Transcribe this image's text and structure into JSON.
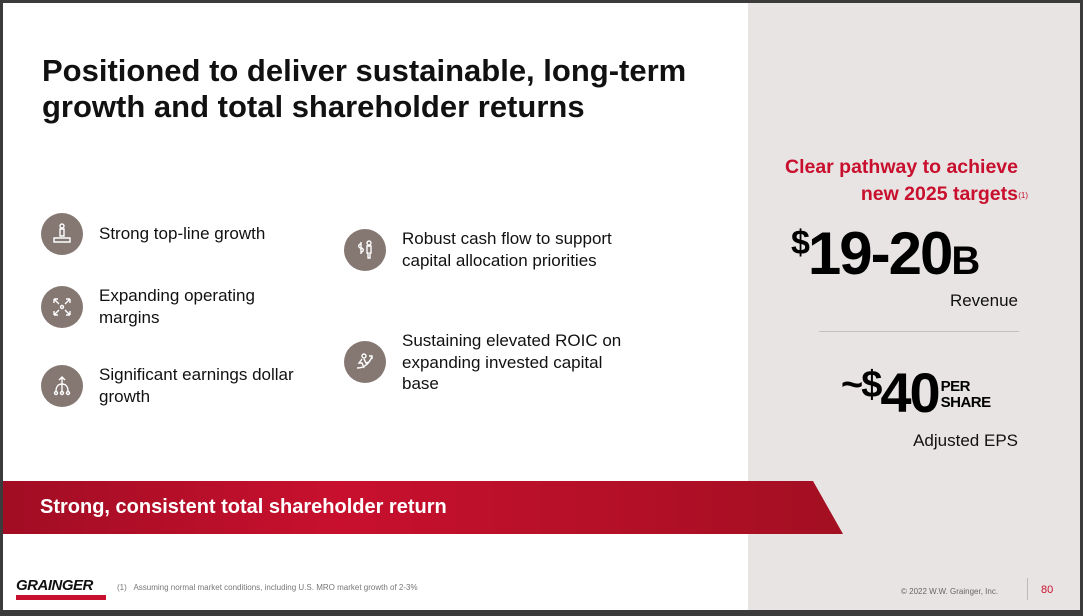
{
  "title": "Positioned to deliver sustainable, long-term growth and total shareholder returns",
  "left_items": [
    {
      "icon": "podium-person-icon",
      "text": "Strong top-line growth"
    },
    {
      "icon": "expand-arrows-icon",
      "text": "Expanding operating margins"
    },
    {
      "icon": "hierarchy-growth-icon",
      "text": "Significant earnings dollar growth"
    }
  ],
  "right_items": [
    {
      "icon": "dollar-person-icon",
      "text": "Robust cash flow to support capital allocation priorities"
    },
    {
      "icon": "runner-arrow-icon",
      "text": "Sustaining elevated ROIC on expanding invested capital base"
    }
  ],
  "banner": "Strong, consistent total shareholder return",
  "side": {
    "heading_line1": "Clear pathway to achieve",
    "heading_line2": "new 2025 targets",
    "footnote_ref": "(1)",
    "revenue_prefix": "$",
    "revenue_value": "19-20",
    "revenue_suffix": "B",
    "revenue_label": "Revenue",
    "eps_prefix": "~$",
    "eps_value": "40",
    "eps_unit_1": "PER",
    "eps_unit_2": "SHARE",
    "eps_label": "Adjusted EPS"
  },
  "footer": {
    "logo": "GRAINGER",
    "note_ref": "(1)",
    "note": "Assuming normal market conditions, including U.S. MRO market growth of 2-3%",
    "copyright": "© 2022 W.W. Grainger, Inc.",
    "page": "80"
  },
  "colors": {
    "accent": "#c8102e",
    "icon_bg": "#857873",
    "side_bg": "#e8e4e3"
  }
}
